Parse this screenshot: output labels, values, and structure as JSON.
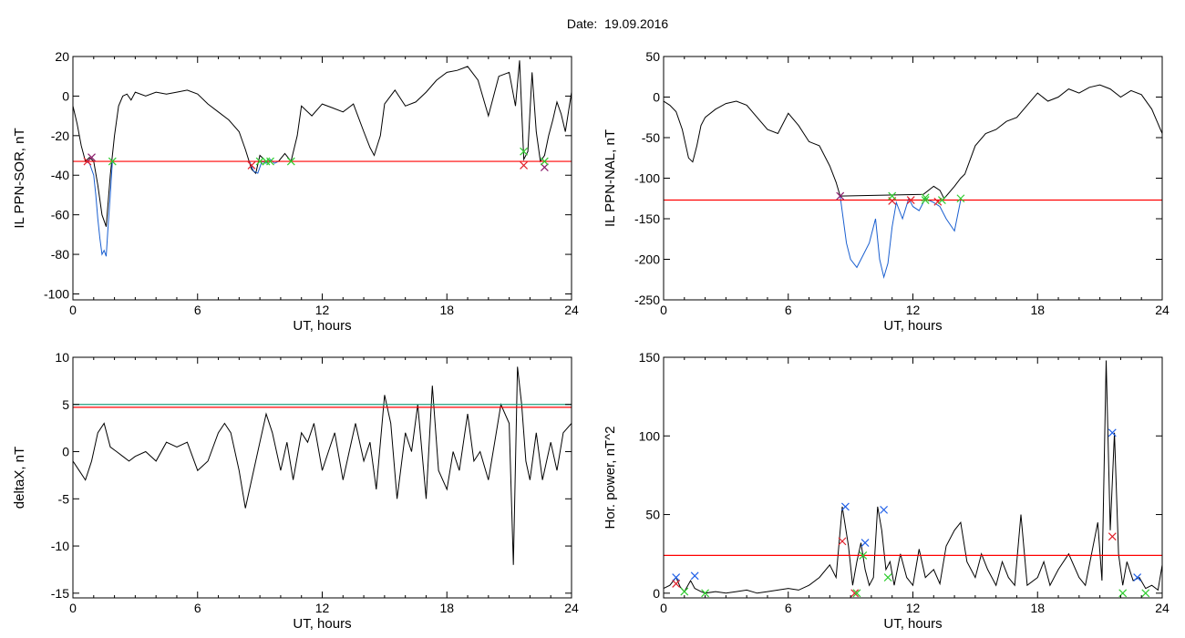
{
  "header": {
    "date_label": "Date:",
    "date_value": "19.09.2016"
  },
  "colors": {
    "threshold": "#ff0000",
    "threshold_alt": "#1f9f7f",
    "event_trace": "#1a5fd0",
    "marker_red": "#e0202a",
    "marker_green": "#2ecc2e",
    "marker_blue": "#2060e8",
    "marker_purple": "#8a1a6a"
  },
  "chart_data": [
    {
      "id": "sor",
      "type": "line",
      "title": "",
      "xlabel": "UT, hours",
      "ylabel": "IL PPN-SOR, nT",
      "xlim": [
        0,
        24
      ],
      "ylim": [
        -103,
        20
      ],
      "xticks": [
        0,
        6,
        12,
        18,
        24
      ],
      "yticks": [
        20,
        0,
        -20,
        -40,
        -60,
        -80,
        -100
      ],
      "grid": false,
      "thresholds": [
        {
          "value": -33,
          "color": "#ff0000"
        }
      ],
      "series": [
        {
          "color": "#000000",
          "x": [
            0.0,
            0.2,
            0.4,
            0.6,
            0.8,
            1.0,
            1.2,
            1.4,
            1.6,
            1.8,
            2.0,
            2.2,
            2.4,
            2.6,
            2.8,
            3.0,
            3.5,
            4.0,
            4.5,
            5.0,
            5.5,
            6.0,
            6.5,
            7.0,
            7.5,
            8.0,
            8.3,
            8.6,
            8.8,
            9.0,
            9.3,
            9.6,
            9.9,
            10.2,
            10.5,
            10.8,
            11.0,
            11.5,
            12.0,
            12.5,
            13.0,
            13.5,
            14.0,
            14.3,
            14.5,
            14.8,
            15.0,
            15.5,
            16.0,
            16.5,
            17.0,
            17.5,
            18.0,
            18.5,
            19.0,
            19.5,
            20.0,
            20.5,
            21.0,
            21.3,
            21.5,
            21.7,
            21.9,
            22.1,
            22.3,
            22.5,
            22.7,
            22.9,
            23.1,
            23.3,
            23.5,
            23.7,
            24.0
          ],
          "y": [
            -5,
            -14,
            -25,
            -33,
            -31,
            -33,
            -45,
            -60,
            -66,
            -40,
            -20,
            -5,
            0,
            1,
            -2,
            2,
            0,
            2,
            1,
            2,
            3,
            1,
            -4,
            -8,
            -12,
            -18,
            -27,
            -37,
            -39,
            -30,
            -33,
            -33,
            -33,
            -29,
            -33,
            -20,
            -5,
            -10,
            -4,
            -6,
            -8,
            -4,
            -18,
            -26,
            -30,
            -20,
            -4,
            3,
            -5,
            -3,
            2,
            8,
            12,
            13,
            15,
            8,
            -10,
            10,
            12,
            -5,
            18,
            -32,
            -28,
            12,
            -18,
            -33,
            -30,
            -20,
            -12,
            -3,
            -9,
            -18,
            2
          ]
        },
        {
          "color": "#1a5fd0",
          "x": [
            0.6,
            0.8,
            1.0,
            1.1,
            1.2,
            1.3,
            1.4,
            1.5,
            1.6,
            1.7,
            1.8,
            1.9
          ],
          "y": [
            -33,
            -34,
            -40,
            -50,
            -62,
            -72,
            -80,
            -78,
            -81,
            -65,
            -50,
            -33
          ]
        },
        {
          "color": "#1a5fd0",
          "x": [
            8.5,
            8.7,
            8.9,
            9.1,
            9.3,
            9.5,
            9.7,
            9.9,
            10.2,
            10.5
          ],
          "y": [
            -33,
            -38,
            -39,
            -33,
            -34,
            -32,
            -34,
            -33,
            -33,
            -33
          ]
        }
      ],
      "markers": [
        {
          "x": 0.7,
          "y": -33,
          "color": "#e0202a"
        },
        {
          "x": 0.9,
          "y": -31,
          "color": "#8a1a6a"
        },
        {
          "x": 1.9,
          "y": -33,
          "color": "#2ecc2e"
        },
        {
          "x": 8.6,
          "y": -35,
          "color": "#e0202a"
        },
        {
          "x": 9.0,
          "y": -33,
          "color": "#2ecc2e"
        },
        {
          "x": 9.3,
          "y": -33,
          "color": "#2ecc2e"
        },
        {
          "x": 9.5,
          "y": -33,
          "color": "#2ecc2e"
        },
        {
          "x": 10.5,
          "y": -33,
          "color": "#2ecc2e"
        },
        {
          "x": 21.7,
          "y": -35,
          "color": "#e0202a"
        },
        {
          "x": 21.7,
          "y": -28,
          "color": "#2ecc2e"
        },
        {
          "x": 22.7,
          "y": -36,
          "color": "#8a1a6a"
        },
        {
          "x": 22.7,
          "y": -33,
          "color": "#2ecc2e"
        }
      ]
    },
    {
      "id": "nal",
      "type": "line",
      "title": "",
      "xlabel": "UT, hours",
      "ylabel": "IL PPN-NAL, nT",
      "xlim": [
        0,
        24
      ],
      "ylim": [
        -250,
        50
      ],
      "xticks": [
        0,
        6,
        12,
        18,
        24
      ],
      "yticks": [
        50,
        0,
        -50,
        -100,
        -150,
        -200,
        -250
      ],
      "grid": false,
      "thresholds": [
        {
          "value": -127,
          "color": "#ff0000"
        }
      ],
      "series": [
        {
          "color": "#000000",
          "x": [
            0.0,
            0.3,
            0.6,
            0.9,
            1.2,
            1.4,
            1.6,
            1.8,
            2.0,
            2.5,
            3.0,
            3.5,
            4.0,
            4.5,
            5.0,
            5.5,
            6.0,
            6.5,
            7.0,
            7.5,
            8.0,
            8.3,
            8.5,
            12.5,
            13.0,
            13.3,
            13.5,
            14.0,
            14.3,
            14.5,
            15.0,
            15.5,
            16.0,
            16.5,
            17.0,
            17.5,
            18.0,
            18.5,
            19.0,
            19.5,
            20.0,
            20.5,
            21.0,
            21.5,
            22.0,
            22.5,
            23.0,
            23.5,
            24.0
          ],
          "y": [
            -5,
            -10,
            -18,
            -40,
            -75,
            -80,
            -60,
            -35,
            -25,
            -15,
            -8,
            -5,
            -10,
            -25,
            -40,
            -45,
            -20,
            -35,
            -55,
            -60,
            -85,
            -105,
            -122,
            -120,
            -110,
            -115,
            -125,
            -110,
            -100,
            -95,
            -60,
            -45,
            -40,
            -30,
            -25,
            -10,
            5,
            -5,
            0,
            10,
            5,
            12,
            15,
            10,
            0,
            8,
            3,
            -15,
            -45
          ]
        },
        {
          "color": "#1a5fd0",
          "x": [
            8.5,
            8.8,
            9.0,
            9.3,
            9.6,
            9.9,
            10.2,
            10.4,
            10.6,
            10.8,
            11.0,
            11.2,
            11.5,
            11.8,
            12.0,
            12.3,
            12.6,
            13.0,
            13.3,
            13.6,
            14.0,
            14.3
          ],
          "y": [
            -122,
            -180,
            -200,
            -210,
            -195,
            -180,
            -150,
            -200,
            -222,
            -205,
            -160,
            -130,
            -150,
            -125,
            -135,
            -140,
            -125,
            -130,
            -135,
            -150,
            -165,
            -127
          ]
        }
      ],
      "markers": [
        {
          "x": 8.5,
          "y": -122,
          "color": "#8a1a6a"
        },
        {
          "x": 11.0,
          "y": -128,
          "color": "#e0202a"
        },
        {
          "x": 11.0,
          "y": -122,
          "color": "#2ecc2e"
        },
        {
          "x": 11.9,
          "y": -127,
          "color": "#e0202a"
        },
        {
          "x": 12.6,
          "y": -127,
          "color": "#2ecc2e"
        },
        {
          "x": 12.6,
          "y": -124,
          "color": "#2ecc2e"
        },
        {
          "x": 13.2,
          "y": -129,
          "color": "#e0202a"
        },
        {
          "x": 13.4,
          "y": -127,
          "color": "#2ecc2e"
        },
        {
          "x": 14.3,
          "y": -125,
          "color": "#2ecc2e"
        }
      ]
    },
    {
      "id": "deltax",
      "type": "line",
      "title": "",
      "xlabel": "UT, hours",
      "ylabel": "deltaX, nT",
      "xlim": [
        0,
        24
      ],
      "ylim": [
        -15.5,
        10
      ],
      "xticks": [
        0,
        6,
        12,
        18,
        24
      ],
      "yticks": [
        10,
        5,
        0,
        -5,
        -10,
        -15
      ],
      "grid": false,
      "thresholds": [
        {
          "value": 5.0,
          "color": "#1f9f7f"
        },
        {
          "value": 4.7,
          "color": "#ff0000"
        }
      ],
      "series": [
        {
          "color": "#000000",
          "x": [
            0.0,
            0.3,
            0.6,
            0.9,
            1.2,
            1.5,
            1.8,
            2.1,
            2.4,
            2.7,
            3.0,
            3.5,
            4.0,
            4.5,
            5.0,
            5.5,
            6.0,
            6.5,
            7.0,
            7.3,
            7.6,
            8.0,
            8.3,
            8.6,
            9.0,
            9.3,
            9.6,
            10.0,
            10.3,
            10.6,
            11.0,
            11.3,
            11.6,
            12.0,
            12.3,
            12.6,
            13.0,
            13.3,
            13.6,
            14.0,
            14.3,
            14.6,
            15.0,
            15.3,
            15.6,
            16.0,
            16.3,
            16.6,
            17.0,
            17.3,
            17.6,
            18.0,
            18.3,
            18.6,
            19.0,
            19.3,
            19.6,
            20.0,
            20.3,
            20.6,
            21.0,
            21.2,
            21.4,
            21.6,
            21.8,
            22.0,
            22.3,
            22.6,
            23.0,
            23.3,
            23.6,
            24.0
          ],
          "y": [
            -1,
            -2,
            -3,
            -1,
            2,
            3,
            0.5,
            0,
            -0.5,
            -1,
            -0.5,
            0,
            -1,
            1,
            0.5,
            1,
            -2,
            -1,
            2,
            3,
            2,
            -2,
            -6,
            -3,
            1,
            4,
            2,
            -2,
            1,
            -3,
            2,
            1,
            3,
            -2,
            0,
            2,
            -3,
            0,
            3,
            -1,
            1,
            -4,
            6,
            3,
            -5,
            2,
            0,
            5,
            -5,
            7,
            -2,
            -4,
            0,
            -2,
            4,
            -1,
            0,
            -3,
            1,
            5,
            3,
            -12,
            9,
            5,
            -1,
            -3,
            2,
            -3,
            1,
            -2,
            2,
            3
          ]
        }
      ],
      "markers": []
    },
    {
      "id": "power",
      "type": "line",
      "title": "",
      "xlabel": "UT, hours",
      "ylabel": "Hor. power, nT^2",
      "xlim": [
        0,
        24
      ],
      "ylim": [
        -3,
        150
      ],
      "xticks": [
        0,
        6,
        12,
        18,
        24
      ],
      "yticks": [
        150,
        100,
        50,
        0
      ],
      "grid": false,
      "thresholds": [
        {
          "value": 24,
          "color": "#ff0000"
        }
      ],
      "series": [
        {
          "color": "#000000",
          "x": [
            0.0,
            0.3,
            0.6,
            0.8,
            1.0,
            1.3,
            1.5,
            1.8,
            2.0,
            2.5,
            3.0,
            3.5,
            4.0,
            4.5,
            5.0,
            5.5,
            6.0,
            6.5,
            7.0,
            7.5,
            8.0,
            8.3,
            8.6,
            8.9,
            9.1,
            9.3,
            9.5,
            9.7,
            9.9,
            10.1,
            10.3,
            10.5,
            10.7,
            10.9,
            11.1,
            11.4,
            11.7,
            12.0,
            12.3,
            12.6,
            13.0,
            13.3,
            13.6,
            14.0,
            14.3,
            14.6,
            15.0,
            15.3,
            15.6,
            16.0,
            16.3,
            16.6,
            16.9,
            17.2,
            17.5,
            18.0,
            18.3,
            18.6,
            19.0,
            19.5,
            20.0,
            20.3,
            20.6,
            20.9,
            21.1,
            21.3,
            21.5,
            21.7,
            21.9,
            22.1,
            22.3,
            22.6,
            22.9,
            23.2,
            23.5,
            23.8,
            24.0
          ],
          "y": [
            3,
            5,
            10,
            4,
            1,
            8,
            3,
            1,
            0,
            1,
            0,
            1,
            2,
            0,
            1,
            2,
            3,
            2,
            5,
            10,
            18,
            10,
            55,
            30,
            5,
            20,
            32,
            15,
            5,
            10,
            55,
            40,
            15,
            20,
            5,
            25,
            10,
            5,
            28,
            10,
            15,
            6,
            30,
            40,
            45,
            20,
            10,
            25,
            15,
            5,
            20,
            10,
            5,
            50,
            5,
            10,
            20,
            5,
            15,
            25,
            10,
            5,
            25,
            45,
            8,
            148,
            40,
            102,
            25,
            5,
            20,
            8,
            10,
            3,
            5,
            2,
            18
          ]
        }
      ],
      "markers": [
        {
          "x": 0.6,
          "y": 10,
          "color": "#2060e8"
        },
        {
          "x": 0.6,
          "y": 6,
          "color": "#e0202a"
        },
        {
          "x": 1.0,
          "y": 1,
          "color": "#2ecc2e"
        },
        {
          "x": 1.5,
          "y": 11,
          "color": "#2060e8"
        },
        {
          "x": 2.0,
          "y": 0,
          "color": "#2ecc2e"
        },
        {
          "x": 8.6,
          "y": 33,
          "color": "#e0202a"
        },
        {
          "x": 8.75,
          "y": 55,
          "color": "#2060e8"
        },
        {
          "x": 9.2,
          "y": 0,
          "color": "#e0202a"
        },
        {
          "x": 9.3,
          "y": 0,
          "color": "#2ecc2e"
        },
        {
          "x": 9.7,
          "y": 32,
          "color": "#2060e8"
        },
        {
          "x": 9.6,
          "y": 24,
          "color": "#2ecc2e"
        },
        {
          "x": 10.6,
          "y": 53,
          "color": "#2060e8"
        },
        {
          "x": 10.8,
          "y": 10,
          "color": "#2ecc2e"
        },
        {
          "x": 21.6,
          "y": 102,
          "color": "#2060e8"
        },
        {
          "x": 21.6,
          "y": 36,
          "color": "#e0202a"
        },
        {
          "x": 22.8,
          "y": 10,
          "color": "#2060e8"
        },
        {
          "x": 22.1,
          "y": 0,
          "color": "#2ecc2e"
        },
        {
          "x": 23.2,
          "y": 0,
          "color": "#2ecc2e"
        }
      ]
    }
  ]
}
